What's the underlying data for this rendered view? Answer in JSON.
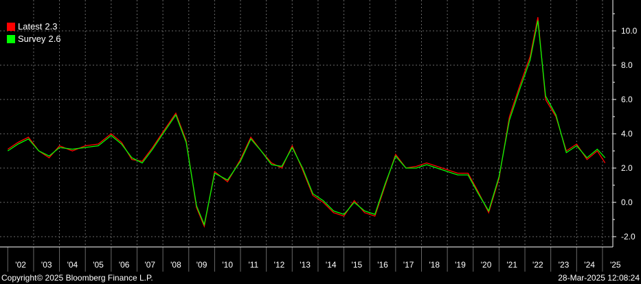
{
  "chart_data": {
    "type": "line",
    "x_tick_labels": [
      "'02",
      "'03",
      "'04",
      "'05",
      "'06",
      "'07",
      "'08",
      "'09",
      "'10",
      "'11",
      "'12",
      "'13",
      "'14",
      "'15",
      "'16",
      "'17",
      "'18",
      "'19",
      "'20",
      "'21",
      "'22",
      "'23",
      "'24",
      "'25"
    ],
    "y_tick_labels": [
      "-2.0",
      "0.0",
      "2.0",
      "4.0",
      "6.0",
      "8.0",
      "10.0"
    ],
    "ylim": [
      -2.6,
      11.8
    ],
    "xlim": [
      2001.7,
      2025.4
    ],
    "grid": true,
    "legend_position": "top-left",
    "series": [
      {
        "name": "Latest",
        "latest_value": "2.3",
        "color": "#ff0000",
        "x": [
          2002.0,
          2002.4,
          2002.8,
          2003.2,
          2003.6,
          2004.0,
          2004.5,
          2005.0,
          2005.5,
          2006.0,
          2006.4,
          2006.8,
          2007.2,
          2007.6,
          2008.0,
          2008.5,
          2008.9,
          2009.3,
          2009.6,
          2010.0,
          2010.5,
          2011.0,
          2011.4,
          2011.8,
          2012.2,
          2012.6,
          2013.0,
          2013.4,
          2013.8,
          2014.2,
          2014.6,
          2015.0,
          2015.4,
          2015.8,
          2016.2,
          2016.6,
          2017.0,
          2017.4,
          2017.8,
          2018.2,
          2018.6,
          2019.0,
          2019.4,
          2019.8,
          2020.2,
          2020.6,
          2021.0,
          2021.4,
          2021.8,
          2022.2,
          2022.5,
          2022.8,
          2023.2,
          2023.6,
          2024.0,
          2024.4,
          2024.8,
          2025.1
        ],
        "y": [
          3.1,
          3.5,
          3.8,
          3.0,
          2.6,
          3.3,
          3.0,
          3.3,
          3.4,
          4.0,
          3.5,
          2.5,
          2.4,
          3.2,
          4.1,
          5.2,
          3.6,
          -0.3,
          -1.4,
          1.8,
          1.2,
          2.5,
          3.8,
          3.0,
          2.3,
          2.0,
          3.3,
          1.9,
          0.4,
          0.0,
          -0.6,
          -0.8,
          0.1,
          -0.6,
          -0.8,
          1.0,
          2.8,
          2.0,
          2.1,
          2.3,
          2.1,
          1.9,
          1.7,
          1.7,
          0.6,
          -0.6,
          1.4,
          5.0,
          6.8,
          8.5,
          10.8,
          6.0,
          5.0,
          3.0,
          3.4,
          2.5,
          3.0,
          2.3
        ]
      },
      {
        "name": "Survey",
        "latest_value": "2.6",
        "color": "#00ff00",
        "x": [
          2002.0,
          2002.4,
          2002.8,
          2003.2,
          2003.6,
          2004.0,
          2004.5,
          2005.0,
          2005.5,
          2006.0,
          2006.4,
          2006.8,
          2007.2,
          2007.6,
          2008.0,
          2008.5,
          2008.9,
          2009.3,
          2009.6,
          2010.0,
          2010.5,
          2011.0,
          2011.4,
          2011.8,
          2012.2,
          2012.6,
          2013.0,
          2013.4,
          2013.8,
          2014.2,
          2014.6,
          2015.0,
          2015.4,
          2015.8,
          2016.2,
          2016.6,
          2017.0,
          2017.4,
          2017.8,
          2018.2,
          2018.6,
          2019.0,
          2019.4,
          2019.8,
          2020.2,
          2020.6,
          2021.0,
          2021.4,
          2021.8,
          2022.2,
          2022.5,
          2022.8,
          2023.2,
          2023.6,
          2024.0,
          2024.4,
          2024.8,
          2025.1
        ],
        "y": [
          3.0,
          3.4,
          3.7,
          3.0,
          2.7,
          3.2,
          3.1,
          3.2,
          3.3,
          3.9,
          3.4,
          2.6,
          2.3,
          3.1,
          4.0,
          5.1,
          3.5,
          -0.2,
          -1.3,
          1.7,
          1.3,
          2.4,
          3.7,
          3.0,
          2.2,
          2.1,
          3.2,
          2.0,
          0.5,
          0.1,
          -0.5,
          -0.7,
          0.0,
          -0.5,
          -0.7,
          1.1,
          2.7,
          2.0,
          2.0,
          2.2,
          2.0,
          1.8,
          1.6,
          1.6,
          0.5,
          -0.5,
          1.5,
          4.8,
          6.6,
          8.3,
          10.6,
          6.2,
          5.1,
          2.9,
          3.3,
          2.6,
          3.1,
          2.6
        ]
      }
    ]
  },
  "footer": {
    "copyright": "Copyright© 2025 Bloomberg Finance L.P.",
    "timestamp": "28-Mar-2025 12:08:24"
  }
}
